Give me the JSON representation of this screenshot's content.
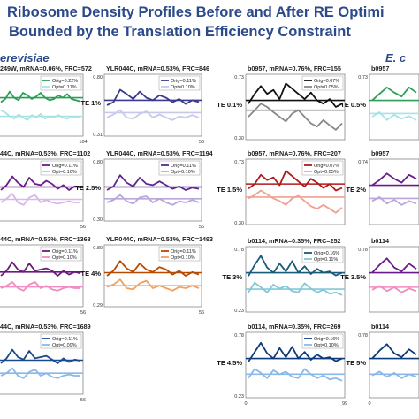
{
  "title_line1": "Ribosome Density Profiles Before and After RE Optimi",
  "title_line2": "Bounded by the Translation Efficiency Constraint",
  "organism_left": "erevisiae",
  "organism_right": "E. c",
  "chart_data": [
    {
      "type": "line",
      "id": "p1",
      "header": "249W, mRNA=0.06%, FRC=572",
      "te": "",
      "y_top": "",
      "y_bot": "",
      "x_max": "104",
      "color": "#2e9e57",
      "light": "#a8e3e3",
      "legend": [
        "Orig=6.22%",
        "Opt=0.17%"
      ],
      "orig_level": 0.62,
      "opt_level": 0.32,
      "orig": [
        0.55,
        0.6,
        0.72,
        0.62,
        0.58,
        0.7,
        0.66,
        0.6,
        0.64,
        0.7,
        0.62,
        0.58,
        0.6,
        0.66,
        0.62,
        0.68,
        0.6,
        0.58,
        0.56
      ],
      "opt": [
        0.42,
        0.38,
        0.32,
        0.28,
        0.35,
        0.3,
        0.26,
        0.34,
        0.3,
        0.36,
        0.28,
        0.32,
        0.3,
        0.34,
        0.3,
        0.28,
        0.32,
        0.3,
        0.3
      ]
    },
    {
      "type": "line",
      "id": "p2",
      "header": "YLR044C, mRNA=0.53%, FRC=846",
      "te": "TE 1%",
      "y_top": "0.80",
      "y_bot": "0.31",
      "x_max": "56",
      "color": "#3a3a8c",
      "light": "#c8c8ea",
      "legend": [
        "Orig=0.11%",
        "Opt=0.10%"
      ],
      "orig_level": 0.58,
      "opt_level": 0.38,
      "orig": [
        0.5,
        0.55,
        0.75,
        0.68,
        0.6,
        0.72,
        0.62,
        0.58,
        0.66,
        0.62,
        0.55,
        0.6,
        0.52,
        0.58,
        0.55
      ],
      "opt": [
        0.3,
        0.35,
        0.42,
        0.3,
        0.28,
        0.36,
        0.4,
        0.3,
        0.35,
        0.3,
        0.26,
        0.32,
        0.3,
        0.34,
        0.3
      ]
    },
    {
      "type": "line",
      "id": "p3",
      "header": "44C, mRNA=0.53%, FRC=1102",
      "te": "",
      "y_top": "",
      "y_bot": "",
      "x_max": "56",
      "color": "#6a1b8a",
      "light": "#d7b8e8",
      "legend": [
        "Orig=0.11%",
        "Opt=0.10%"
      ],
      "orig_level": 0.55,
      "opt_level": 0.35,
      "orig": [
        0.5,
        0.58,
        0.72,
        0.62,
        0.55,
        0.7,
        0.6,
        0.58,
        0.65,
        0.6,
        0.52,
        0.58,
        0.5,
        0.56,
        0.54
      ],
      "opt": [
        0.3,
        0.36,
        0.44,
        0.3,
        0.26,
        0.38,
        0.42,
        0.3,
        0.34,
        0.3,
        0.28,
        0.3,
        0.32,
        0.3,
        0.3
      ]
    },
    {
      "type": "line",
      "id": "p4",
      "header": "YLR044C, mRNA=0.53%, FRC=1194",
      "te": "TE 2.5%",
      "y_top": "0.80",
      "y_bot": "0.30",
      "x_max": "56",
      "color": "#5a2a8c",
      "light": "#b7a7dc",
      "legend": [
        "Orig=0.11%",
        "Opt=0.10%"
      ],
      "orig_level": 0.55,
      "opt_level": 0.36,
      "orig": [
        0.5,
        0.56,
        0.74,
        0.62,
        0.56,
        0.7,
        0.6,
        0.58,
        0.64,
        0.58,
        0.52,
        0.56,
        0.5,
        0.54,
        0.52
      ],
      "opt": [
        0.3,
        0.34,
        0.42,
        0.32,
        0.28,
        0.38,
        0.4,
        0.3,
        0.36,
        0.3,
        0.26,
        0.32,
        0.3,
        0.34,
        0.3
      ]
    },
    {
      "type": "line",
      "id": "p5",
      "header": "44C, mRNA=0.53%, FRC=1368",
      "te": "",
      "y_top": "",
      "y_bot": "",
      "x_max": "56",
      "color": "#6a1b7a",
      "light": "#f08cc0",
      "legend": [
        "Orig=0.11%",
        "Opt=0.10%"
      ],
      "orig_level": 0.56,
      "opt_level": 0.32,
      "orig": [
        0.5,
        0.58,
        0.72,
        0.6,
        0.56,
        0.7,
        0.58,
        0.6,
        0.62,
        0.58,
        0.5,
        0.58,
        0.52,
        0.56,
        0.54
      ],
      "opt": [
        0.3,
        0.34,
        0.4,
        0.3,
        0.26,
        0.36,
        0.4,
        0.3,
        0.34,
        0.28,
        0.26,
        0.3,
        0.32,
        0.3,
        0.3
      ]
    },
    {
      "type": "line",
      "id": "p6",
      "header": "YLR044C, mRNA=0.53%, FRC=1493",
      "te": "TE 4%",
      "y_top": "0.80",
      "y_bot": "0.29",
      "x_max": "56",
      "color": "#b84a00",
      "light": "#f0a060",
      "legend": [
        "Orig=0.11%",
        "Opt=0.10%"
      ],
      "orig_level": 0.55,
      "opt_level": 0.34,
      "orig": [
        0.5,
        0.58,
        0.74,
        0.62,
        0.56,
        0.7,
        0.6,
        0.56,
        0.64,
        0.6,
        0.52,
        0.58,
        0.5,
        0.56,
        0.52
      ],
      "opt": [
        0.32,
        0.36,
        0.44,
        0.3,
        0.28,
        0.38,
        0.42,
        0.3,
        0.34,
        0.3,
        0.26,
        0.32,
        0.3,
        0.34,
        0.3
      ]
    },
    {
      "type": "line",
      "id": "p7",
      "header": "44C, mRNA=0.53%, FRC=1689",
      "te": "",
      "y_top": "",
      "y_bot": "",
      "x_max": "56",
      "color": "#1a4a8c",
      "light": "#8ab8e8",
      "legend": [
        "Orig=0.11%",
        "Opt=0.09%"
      ],
      "orig_level": 0.55,
      "opt_level": 0.34,
      "orig": [
        0.5,
        0.58,
        0.72,
        0.6,
        0.56,
        0.7,
        0.58,
        0.6,
        0.62,
        0.56,
        0.5,
        0.58,
        0.52,
        0.56,
        0.54
      ],
      "opt": [
        0.3,
        0.34,
        0.42,
        0.3,
        0.26,
        0.36,
        0.4,
        0.3,
        0.34,
        0.28,
        0.26,
        0.3,
        0.32,
        0.3,
        0.3
      ]
    },
    {
      "type": "line",
      "id": "p8",
      "header": "b0957, mRNA=0.76%, FRC=155",
      "te": "TE 0.1%",
      "y_top": "0.73",
      "y_bot": "0.30",
      "x_max": "",
      "color": "#111111",
      "light": "#888888",
      "legend": [
        "Orig=0.07%",
        "Opt=0.05%"
      ],
      "orig_level": 0.6,
      "opt_level": 0.45,
      "orig": [
        0.55,
        0.7,
        0.82,
        0.7,
        0.76,
        0.62,
        0.86,
        0.78,
        0.7,
        0.62,
        0.72,
        0.6,
        0.55,
        0.62,
        0.5,
        0.55
      ],
      "opt": [
        0.35,
        0.45,
        0.55,
        0.5,
        0.42,
        0.35,
        0.28,
        0.4,
        0.45,
        0.35,
        0.25,
        0.2,
        0.3,
        0.22,
        0.15,
        0.25
      ]
    },
    {
      "type": "line",
      "id": "p9",
      "header": "b0957",
      "te": "TE 0.5%",
      "y_top": "0.73",
      "y_bot": "",
      "x_max": "",
      "color": "#2e9e57",
      "light": "#a8e3e3",
      "legend": [],
      "orig_level": 0.6,
      "opt_level": 0.4,
      "orig": [
        0.6,
        0.7,
        0.8,
        0.72,
        0.66,
        0.8,
        0.72
      ],
      "opt": [
        0.35,
        0.42,
        0.3,
        0.38,
        0.32,
        0.36,
        0.3
      ]
    },
    {
      "type": "line",
      "id": "p10",
      "header": "b0957, mRNA=0.76%, FRC=207",
      "te": "TE 1.5%",
      "y_top": "0.73",
      "y_bot": "0.30",
      "x_max": "",
      "color": "#b01a1a",
      "light": "#f0a090",
      "legend": [
        "Orig=0.07%",
        "Opt=0.05%"
      ],
      "orig_level": 0.62,
      "opt_level": 0.42,
      "orig": [
        0.55,
        0.62,
        0.76,
        0.68,
        0.72,
        0.6,
        0.82,
        0.74,
        0.66,
        0.58,
        0.7,
        0.64,
        0.56,
        0.62,
        0.52,
        0.56
      ],
      "opt": [
        0.4,
        0.45,
        0.52,
        0.46,
        0.4,
        0.36,
        0.3,
        0.4,
        0.44,
        0.36,
        0.28,
        0.24,
        0.3,
        0.24,
        0.18,
        0.26
      ]
    },
    {
      "type": "line",
      "id": "p11",
      "header": "b0957",
      "te": "TE 2%",
      "y_top": "0.74",
      "y_bot": "",
      "x_max": "",
      "color": "#6a1b8a",
      "light": "#b7a7dc",
      "legend": [],
      "orig_level": 0.6,
      "opt_level": 0.4,
      "orig": [
        0.6,
        0.68,
        0.78,
        0.7,
        0.64,
        0.76,
        0.7
      ],
      "opt": [
        0.36,
        0.42,
        0.32,
        0.38,
        0.3,
        0.36,
        0.32
      ]
    },
    {
      "type": "line",
      "id": "p12",
      "header": "b0114, mRNA=0.35%, FRC=252",
      "te": "TE 3%",
      "y_top": "0.78",
      "y_bot": "0.23",
      "x_max": "",
      "color": "#1a5a7a",
      "light": "#80c8d8",
      "legend": [
        "Orig=0.16%",
        "Opt=0.11%"
      ],
      "orig_level": 0.6,
      "opt_level": 0.35,
      "orig": [
        0.55,
        0.72,
        0.86,
        0.68,
        0.6,
        0.74,
        0.62,
        0.78,
        0.6,
        0.7,
        0.58,
        0.66,
        0.6,
        0.62,
        0.56,
        0.6
      ],
      "opt": [
        0.3,
        0.45,
        0.38,
        0.3,
        0.42,
        0.36,
        0.4,
        0.32,
        0.3,
        0.44,
        0.36,
        0.3,
        0.34,
        0.28,
        0.3,
        0.26
      ]
    },
    {
      "type": "line",
      "id": "p13",
      "header": "b0114",
      "te": "TE 3.5%",
      "y_top": "0.78",
      "y_bot": "",
      "x_max": "",
      "color": "#6a1b8a",
      "light": "#f08cc0",
      "legend": [],
      "orig_level": 0.6,
      "opt_level": 0.38,
      "orig": [
        0.6,
        0.72,
        0.82,
        0.68,
        0.62,
        0.74,
        0.66
      ],
      "opt": [
        0.34,
        0.4,
        0.32,
        0.38,
        0.3,
        0.36,
        0.32
      ]
    },
    {
      "type": "line",
      "id": "p14",
      "header": "b0114, mRNA=0.35%, FRC=269",
      "te": "TE 4.5%",
      "y_top": "0.78",
      "y_bot": "0.23",
      "x_max": "99",
      "x_min": "0",
      "color": "#0d3a7a",
      "light": "#8ab8e8",
      "legend": [
        "Orig=0.16%",
        "Opt=0.10%"
      ],
      "orig_level": 0.6,
      "opt_level": 0.36,
      "orig": [
        0.55,
        0.7,
        0.84,
        0.68,
        0.6,
        0.76,
        0.62,
        0.78,
        0.6,
        0.7,
        0.58,
        0.66,
        0.6,
        0.62,
        0.56,
        0.6
      ],
      "opt": [
        0.3,
        0.44,
        0.38,
        0.3,
        0.42,
        0.36,
        0.4,
        0.32,
        0.3,
        0.44,
        0.36,
        0.3,
        0.34,
        0.28,
        0.3,
        0.26
      ]
    },
    {
      "type": "line",
      "id": "p15",
      "header": "b0114",
      "te": "TE 5%",
      "y_top": "0.78",
      "y_bot": "",
      "x_max": "",
      "x_min": "0",
      "color": "#0d3a7a",
      "light": "#8ab8e8",
      "legend": [],
      "orig_level": 0.6,
      "opt_level": 0.36,
      "orig": [
        0.6,
        0.72,
        0.82,
        0.68,
        0.62,
        0.74,
        0.66
      ],
      "opt": [
        0.34,
        0.4,
        0.32,
        0.38,
        0.3,
        0.36,
        0.32
      ]
    }
  ]
}
